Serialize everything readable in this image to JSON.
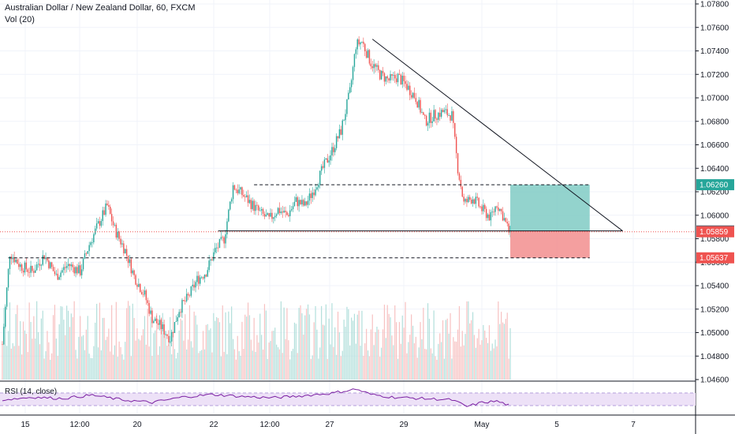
{
  "header": {
    "title": "Australian Dollar / New Zealand Dollar, 60, FXCM",
    "volume_label": "Vol (20)"
  },
  "rsi": {
    "label": "RSI (14, close)"
  },
  "colors": {
    "up": "#26a69a",
    "down": "#ef5350",
    "vol_up": "#b2dfdb",
    "vol_down": "#f7c1c1",
    "grid": "#f0f3fa",
    "rsi_line": "#7b1fa2",
    "rsi_band": "#ede1f7",
    "target_zone": "#80cbc4",
    "stop_zone": "#f28e8e",
    "current_price_tag": "#ef5350",
    "entry_tag": "#5d606b",
    "target_tag": "#26a69a"
  },
  "chart_data": {
    "type": "candlestick",
    "symbol": "AUDNZD",
    "interval": "60",
    "source": "FXCM",
    "ylim": [
      1.046,
      1.078
    ],
    "y_ticks": [
      "1.07800",
      "1.07600",
      "1.07400",
      "1.07200",
      "1.07000",
      "1.06800",
      "1.06600",
      "1.06400",
      "1.06200",
      "1.06000",
      "1.05800",
      "1.05600",
      "1.05400",
      "1.05200",
      "1.05000",
      "1.04800",
      "1.04600"
    ],
    "x_ticks": [
      "15",
      "12:00",
      "20",
      "22",
      "12:00",
      "27",
      "29",
      "May",
      "5",
      "7"
    ],
    "price_tags": {
      "target": "1.06260",
      "entry": "1.05866",
      "current": "1.05859",
      "stop": "1.05637"
    },
    "close_path": [
      [
        0,
        1.049
      ],
      [
        5,
        1.0568
      ],
      [
        12,
        1.0557
      ],
      [
        20,
        1.0552
      ],
      [
        28,
        1.0566
      ],
      [
        36,
        1.0548
      ],
      [
        44,
        1.0558
      ],
      [
        52,
        1.0552
      ],
      [
        58,
        1.0575
      ],
      [
        64,
        1.0592
      ],
      [
        70,
        1.0608
      ],
      [
        75,
        1.0588
      ],
      [
        82,
        1.057
      ],
      [
        88,
        1.0548
      ],
      [
        95,
        1.0532
      ],
      [
        100,
        1.0512
      ],
      [
        106,
        1.0505
      ],
      [
        112,
        1.0495
      ],
      [
        118,
        1.052
      ],
      [
        124,
        1.053
      ],
      [
        130,
        1.0545
      ],
      [
        136,
        1.0552
      ],
      [
        142,
        1.057
      ],
      [
        148,
        1.058
      ],
      [
        154,
        1.0625
      ],
      [
        160,
        1.0618
      ],
      [
        166,
        1.061
      ],
      [
        172,
        1.0602
      ],
      [
        178,
        1.0596
      ],
      [
        184,
        1.0605
      ],
      [
        190,
        1.06
      ],
      [
        196,
        1.0612
      ],
      [
        202,
        1.0608
      ],
      [
        208,
        1.0622
      ],
      [
        214,
        1.064
      ],
      [
        220,
        1.0655
      ],
      [
        226,
        1.0672
      ],
      [
        232,
        1.0705
      ],
      [
        236,
        1.0745
      ],
      [
        240,
        1.0748
      ],
      [
        246,
        1.073
      ],
      [
        252,
        1.072
      ],
      [
        258,
        1.0715
      ],
      [
        264,
        1.0718
      ],
      [
        270,
        1.071
      ],
      [
        276,
        1.07
      ],
      [
        282,
        1.068
      ],
      [
        288,
        1.0685
      ],
      [
        294,
        1.0688
      ],
      [
        300,
        1.0685
      ],
      [
        304,
        1.064
      ],
      [
        308,
        1.061
      ],
      [
        314,
        1.0615
      ],
      [
        320,
        1.0605
      ],
      [
        326,
        1.0598
      ],
      [
        330,
        1.061
      ],
      [
        334,
        1.06
      ],
      [
        338,
        1.0586
      ]
    ],
    "rsi_path": [
      [
        0,
        48
      ],
      [
        20,
        52
      ],
      [
        40,
        50
      ],
      [
        60,
        55
      ],
      [
        80,
        48
      ],
      [
        100,
        44
      ],
      [
        120,
        52
      ],
      [
        140,
        56
      ],
      [
        160,
        53
      ],
      [
        180,
        51
      ],
      [
        200,
        54
      ],
      [
        220,
        58
      ],
      [
        236,
        64
      ],
      [
        246,
        56
      ],
      [
        260,
        52
      ],
      [
        280,
        50
      ],
      [
        300,
        48
      ],
      [
        310,
        38
      ],
      [
        320,
        44
      ],
      [
        330,
        46
      ],
      [
        338,
        40
      ]
    ],
    "levels": [
      {
        "kind": "support",
        "price": 1.05866,
        "from_bar": 144,
        "to_bar": 414
      },
      {
        "kind": "resistance",
        "price": 1.0626,
        "from_bar": 168,
        "to_bar": 392
      },
      {
        "kind": "support",
        "price": 1.05637,
        "from_bar": 4,
        "to_bar": 392
      }
    ],
    "trendline": {
      "from": [
        247,
        1.075
      ],
      "to": [
        414,
        1.05866
      ]
    },
    "position": {
      "entry": 1.05866,
      "target": 1.0626,
      "stop": 1.05637,
      "from_bar": 339,
      "to_bar": 392
    }
  }
}
